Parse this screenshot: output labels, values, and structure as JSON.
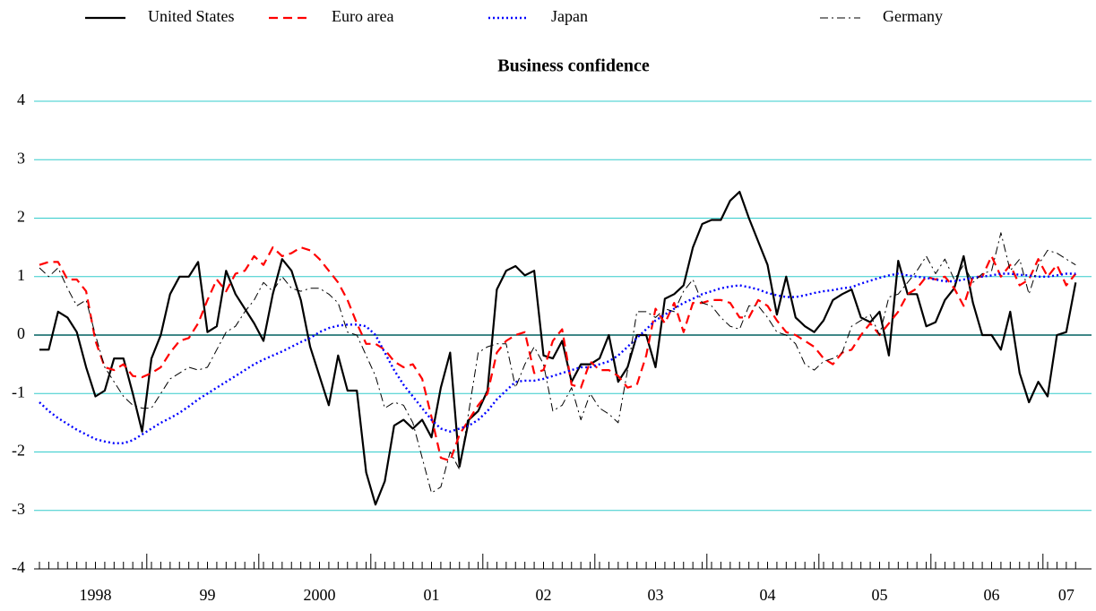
{
  "chart_data": {
    "type": "line",
    "title": "Business confidence",
    "categories": [
      null,
      null,
      null,
      null,
      null,
      null,
      "1998",
      null,
      null,
      null,
      null,
      null,
      null,
      null,
      null,
      null,
      null,
      null,
      "99",
      null,
      null,
      null,
      null,
      null,
      null,
      null,
      null,
      null,
      null,
      null,
      "2000",
      null,
      null,
      null,
      null,
      null,
      null,
      null,
      null,
      null,
      null,
      null,
      "01",
      null,
      null,
      null,
      null,
      null,
      null,
      null,
      null,
      null,
      null,
      null,
      "02",
      null,
      null,
      null,
      null,
      null,
      null,
      null,
      null,
      null,
      null,
      null,
      "03",
      null,
      null,
      null,
      null,
      null,
      null,
      null,
      null,
      null,
      null,
      null,
      "04",
      null,
      null,
      null,
      null,
      null,
      null,
      null,
      null,
      null,
      null,
      null,
      "05",
      null,
      null,
      null,
      null,
      null,
      null,
      null,
      null,
      null,
      null,
      null,
      "06",
      null,
      null,
      null,
      null,
      null,
      null,
      null,
      "07",
      null
    ],
    "ylim": [
      -4,
      4
    ],
    "yticks": [
      -4,
      -3,
      -2,
      -1,
      0,
      1,
      2,
      3,
      4
    ],
    "grid": true,
    "series": [
      {
        "name": "United States",
        "color": "#000000",
        "dash": "solid",
        "values": [
          -0.25,
          -0.25,
          0.4,
          0.3,
          0.05,
          -0.55,
          -1.05,
          -0.95,
          -0.4,
          -0.4,
          -1.0,
          -1.65,
          -0.4,
          0.0,
          0.7,
          1.0,
          1.0,
          1.25,
          0.05,
          0.15,
          1.1,
          0.7,
          0.45,
          0.2,
          -0.1,
          0.7,
          1.3,
          1.1,
          0.6,
          -0.2,
          -0.7,
          -1.2,
          -0.35,
          -0.95,
          -0.95,
          -2.35,
          -2.9,
          -2.5,
          -1.55,
          -1.45,
          -1.6,
          -1.45,
          -1.75,
          -0.9,
          -0.3,
          -2.25,
          -1.45,
          -1.3,
          -0.95,
          0.78,
          1.1,
          1.18,
          1.02,
          1.1,
          -0.35,
          -0.4,
          -0.1,
          -0.8,
          -0.5,
          -0.5,
          -0.4,
          0.0,
          -0.8,
          -0.55,
          0.0,
          0.0,
          -0.55,
          0.62,
          0.7,
          0.85,
          1.5,
          1.9,
          1.97,
          1.97,
          2.3,
          2.45,
          2.0,
          1.6,
          1.2,
          0.35,
          1.0,
          0.3,
          0.15,
          0.05,
          0.25,
          0.6,
          0.7,
          0.78,
          0.3,
          0.22,
          0.4,
          -0.35,
          1.27,
          0.7,
          0.7,
          0.15,
          0.22,
          0.6,
          0.8,
          1.35,
          0.55,
          0.0,
          0.0,
          -0.25,
          0.4,
          -0.65,
          -1.15,
          -0.8,
          -1.05,
          0.0,
          0.05,
          0.9
        ]
      },
      {
        "name": "Euro area",
        "color": "#ff0000",
        "dash": "dashed",
        "values": [
          1.2,
          1.25,
          1.25,
          0.95,
          0.95,
          0.75,
          -0.1,
          -0.55,
          -0.6,
          -0.5,
          -0.7,
          -0.72,
          -0.65,
          -0.55,
          -0.3,
          -0.1,
          -0.05,
          0.2,
          0.6,
          0.95,
          0.75,
          1.05,
          1.1,
          1.35,
          1.2,
          1.5,
          1.35,
          1.4,
          1.5,
          1.45,
          1.3,
          1.1,
          0.9,
          0.6,
          0.2,
          -0.15,
          -0.15,
          -0.25,
          -0.45,
          -0.55,
          -0.5,
          -0.75,
          -1.4,
          -2.1,
          -2.15,
          -1.7,
          -1.45,
          -1.2,
          -1.0,
          -0.3,
          -0.1,
          0.0,
          0.05,
          -0.65,
          -0.6,
          -0.1,
          0.1,
          -0.85,
          -0.9,
          -0.45,
          -0.6,
          -0.6,
          -0.7,
          -0.9,
          -0.85,
          -0.35,
          0.45,
          0.2,
          0.55,
          0.05,
          0.55,
          0.55,
          0.6,
          0.6,
          0.55,
          0.3,
          0.3,
          0.6,
          0.5,
          0.25,
          0.05,
          0.0,
          -0.1,
          -0.2,
          -0.4,
          -0.5,
          -0.3,
          -0.25,
          0.0,
          0.2,
          0.0,
          0.2,
          0.4,
          0.7,
          0.8,
          1.0,
          0.95,
          1.0,
          0.8,
          0.5,
          1.0,
          1.0,
          1.35,
          1.0,
          1.2,
          0.85,
          0.95,
          1.3,
          1.0,
          1.2,
          0.85,
          1.05
        ]
      },
      {
        "name": "Japan",
        "color": "#0000ff",
        "dash": "dotted",
        "values": [
          -1.15,
          -1.3,
          -1.42,
          -1.52,
          -1.62,
          -1.7,
          -1.78,
          -1.82,
          -1.85,
          -1.85,
          -1.8,
          -1.7,
          -1.6,
          -1.5,
          -1.42,
          -1.33,
          -1.22,
          -1.1,
          -1.0,
          -0.9,
          -0.8,
          -0.7,
          -0.6,
          -0.5,
          -0.42,
          -0.35,
          -0.28,
          -0.2,
          -0.12,
          -0.05,
          0.05,
          0.12,
          0.16,
          0.18,
          0.18,
          0.15,
          0.0,
          -0.3,
          -0.6,
          -0.85,
          -1.05,
          -1.25,
          -1.45,
          -1.6,
          -1.65,
          -1.6,
          -1.55,
          -1.45,
          -1.3,
          -1.1,
          -0.95,
          -0.8,
          -0.78,
          -0.78,
          -0.75,
          -0.7,
          -0.65,
          -0.6,
          -0.55,
          -0.55,
          -0.5,
          -0.45,
          -0.35,
          -0.2,
          -0.05,
          0.1,
          0.25,
          0.35,
          0.45,
          0.55,
          0.62,
          0.7,
          0.75,
          0.8,
          0.83,
          0.85,
          0.82,
          0.78,
          0.72,
          0.68,
          0.65,
          0.65,
          0.68,
          0.72,
          0.75,
          0.77,
          0.8,
          0.82,
          0.88,
          0.93,
          0.98,
          1.02,
          1.05,
          1.02,
          1.0,
          0.98,
          0.95,
          0.92,
          0.92,
          0.95,
          0.98,
          1.0,
          1.02,
          1.05,
          1.05,
          1.03,
          1.02,
          1.0,
          1.0,
          1.02,
          1.05,
          1.05
        ]
      },
      {
        "name": "Germany",
        "color": "#000000",
        "dash": "dashdot",
        "values": [
          1.15,
          1.0,
          1.15,
          0.8,
          0.5,
          0.6,
          0.0,
          -0.55,
          -0.8,
          -1.05,
          -1.2,
          -1.25,
          -1.25,
          -1.0,
          -0.75,
          -0.65,
          -0.55,
          -0.6,
          -0.55,
          -0.25,
          0.05,
          0.15,
          0.4,
          0.6,
          0.9,
          0.75,
          1.0,
          0.8,
          0.75,
          0.8,
          0.8,
          0.7,
          0.55,
          0.05,
          0.0,
          -0.35,
          -0.7,
          -1.25,
          -1.15,
          -1.2,
          -1.5,
          -2.1,
          -2.7,
          -2.6,
          -2.0,
          -2.3,
          -1.3,
          -0.3,
          -0.2,
          -0.15,
          -0.15,
          -0.9,
          -0.5,
          -0.2,
          -0.5,
          -1.3,
          -1.2,
          -0.9,
          -1.45,
          -1.0,
          -1.25,
          -1.35,
          -1.5,
          -0.6,
          0.4,
          0.4,
          0.3,
          0.45,
          0.4,
          0.75,
          0.95,
          0.55,
          0.5,
          0.3,
          0.15,
          0.1,
          0.5,
          0.5,
          0.3,
          0.05,
          0.0,
          -0.15,
          -0.5,
          -0.6,
          -0.45,
          -0.4,
          -0.3,
          0.15,
          0.25,
          0.35,
          0.0,
          0.65,
          0.7,
          0.9,
          1.1,
          1.35,
          1.05,
          1.3,
          0.95,
          1.2,
          0.9,
          1.05,
          1.1,
          1.75,
          1.1,
          1.3,
          0.7,
          1.2,
          1.45,
          1.4,
          1.3,
          1.2
        ]
      }
    ]
  }
}
